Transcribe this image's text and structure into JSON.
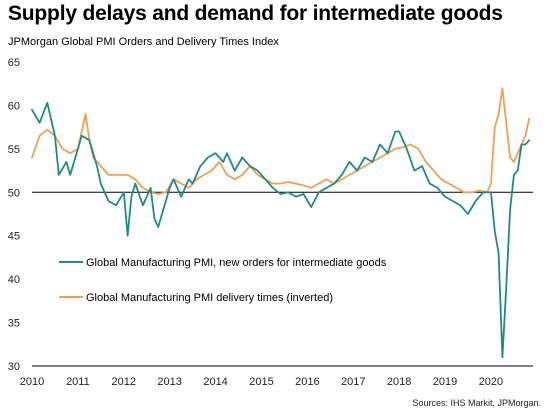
{
  "title": "Supply delays and demand for intermediate goods",
  "subtitle": "JPMorgan Global PMI Orders and Delivery Times Index",
  "source": "Sources: IHS Markit, JPMorgan.",
  "colors": {
    "new_orders": "#1e8c85",
    "delivery_times": "#f0a052",
    "axis": "#000000",
    "reference_line": "#000000"
  },
  "chart_data": {
    "type": "line",
    "x_ticks": [
      "2010",
      "2011",
      "2012",
      "2013",
      "2014",
      "2015",
      "2016",
      "2017",
      "2018",
      "2019",
      "2020"
    ],
    "y_ticks": [
      30,
      35,
      40,
      45,
      50,
      55,
      60,
      65
    ],
    "ylim": [
      30,
      65
    ],
    "xlim": [
      "2010-01",
      "2020-12"
    ],
    "reference_line": 50,
    "grid": false,
    "legend_position": "lower-left",
    "series": [
      {
        "name": "Global Manufacturing PMI, new orders for intermediate goods",
        "color": "#1e8c85",
        "points": [
          [
            "2010-01",
            59.5
          ],
          [
            "2010-03",
            58.0
          ],
          [
            "2010-05",
            60.3
          ],
          [
            "2010-07",
            56.5
          ],
          [
            "2010-08",
            52.0
          ],
          [
            "2010-10",
            53.5
          ],
          [
            "2010-11",
            52.0
          ],
          [
            "2011-01",
            55.0
          ],
          [
            "2011-02",
            56.5
          ],
          [
            "2011-04",
            56.0
          ],
          [
            "2011-06",
            53.0
          ],
          [
            "2011-07",
            51.0
          ],
          [
            "2011-09",
            49.0
          ],
          [
            "2011-11",
            48.5
          ],
          [
            "2012-01",
            50.0
          ],
          [
            "2012-02",
            45.0
          ],
          [
            "2012-03",
            49.5
          ],
          [
            "2012-04",
            51.0
          ],
          [
            "2012-06",
            48.5
          ],
          [
            "2012-08",
            50.5
          ],
          [
            "2012-09",
            47.0
          ],
          [
            "2012-10",
            46.0
          ],
          [
            "2012-11",
            47.5
          ],
          [
            "2013-01",
            50.5
          ],
          [
            "2013-02",
            51.5
          ],
          [
            "2013-04",
            49.5
          ],
          [
            "2013-06",
            51.5
          ],
          [
            "2013-07",
            51.0
          ],
          [
            "2013-09",
            53.0
          ],
          [
            "2013-11",
            54.0
          ],
          [
            "2014-01",
            54.5
          ],
          [
            "2014-03",
            53.5
          ],
          [
            "2014-04",
            54.5
          ],
          [
            "2014-06",
            52.5
          ],
          [
            "2014-08",
            54.0
          ],
          [
            "2014-10",
            53.0
          ],
          [
            "2014-12",
            52.5
          ],
          [
            "2015-02",
            51.5
          ],
          [
            "2015-04",
            50.5
          ],
          [
            "2015-06",
            49.8
          ],
          [
            "2015-08",
            50.0
          ],
          [
            "2015-10",
            49.5
          ],
          [
            "2015-12",
            49.8
          ],
          [
            "2016-02",
            48.3
          ],
          [
            "2016-04",
            50.0
          ],
          [
            "2016-06",
            50.5
          ],
          [
            "2016-08",
            51.0
          ],
          [
            "2016-10",
            52.0
          ],
          [
            "2016-12",
            53.5
          ],
          [
            "2017-02",
            52.5
          ],
          [
            "2017-04",
            54.0
          ],
          [
            "2017-06",
            53.5
          ],
          [
            "2017-08",
            55.5
          ],
          [
            "2017-10",
            54.5
          ],
          [
            "2017-12",
            57.0
          ],
          [
            "2018-01",
            57.0
          ],
          [
            "2018-03",
            55.0
          ],
          [
            "2018-05",
            52.5
          ],
          [
            "2018-07",
            53.0
          ],
          [
            "2018-09",
            51.0
          ],
          [
            "2018-11",
            50.5
          ],
          [
            "2019-01",
            49.5
          ],
          [
            "2019-03",
            49.0
          ],
          [
            "2019-05",
            48.5
          ],
          [
            "2019-07",
            47.5
          ],
          [
            "2019-09",
            49.0
          ],
          [
            "2019-11",
            50.0
          ],
          [
            "2020-01",
            50.0
          ],
          [
            "2020-02",
            45.5
          ],
          [
            "2020-03",
            43.0
          ],
          [
            "2020-04",
            31.0
          ],
          [
            "2020-05",
            39.0
          ],
          [
            "2020-06",
            48.0
          ],
          [
            "2020-07",
            52.0
          ],
          [
            "2020-08",
            52.5
          ],
          [
            "2020-09",
            55.5
          ],
          [
            "2020-10",
            55.5
          ],
          [
            "2020-11",
            56.0
          ]
        ]
      },
      {
        "name": "Global Manufacturing PMI delivery times (inverted)",
        "color": "#f0a052",
        "points": [
          [
            "2010-01",
            54.0
          ],
          [
            "2010-03",
            56.5
          ],
          [
            "2010-05",
            57.2
          ],
          [
            "2010-07",
            56.5
          ],
          [
            "2010-09",
            55.0
          ],
          [
            "2010-11",
            54.5
          ],
          [
            "2011-01",
            55.0
          ],
          [
            "2011-02",
            57.0
          ],
          [
            "2011-03",
            59.0
          ],
          [
            "2011-04",
            56.0
          ],
          [
            "2011-05",
            54.0
          ],
          [
            "2011-07",
            53.0
          ],
          [
            "2011-09",
            52.0
          ],
          [
            "2011-11",
            52.0
          ],
          [
            "2012-02",
            52.0
          ],
          [
            "2012-04",
            51.5
          ],
          [
            "2012-06",
            50.5
          ],
          [
            "2012-08",
            50.0
          ],
          [
            "2012-10",
            49.8
          ],
          [
            "2012-12",
            50.0
          ],
          [
            "2013-02",
            51.5
          ],
          [
            "2013-04",
            51.0
          ],
          [
            "2013-06",
            50.5
          ],
          [
            "2013-08",
            51.5
          ],
          [
            "2013-10",
            52.0
          ],
          [
            "2013-12",
            52.5
          ],
          [
            "2014-02",
            53.5
          ],
          [
            "2014-04",
            52.0
          ],
          [
            "2014-06",
            51.5
          ],
          [
            "2014-08",
            52.0
          ],
          [
            "2014-10",
            53.0
          ],
          [
            "2014-12",
            52.0
          ],
          [
            "2015-02",
            51.5
          ],
          [
            "2015-04",
            51.0
          ],
          [
            "2015-06",
            51.0
          ],
          [
            "2015-08",
            51.2
          ],
          [
            "2015-10",
            51.0
          ],
          [
            "2015-12",
            50.8
          ],
          [
            "2016-02",
            50.5
          ],
          [
            "2016-04",
            51.0
          ],
          [
            "2016-06",
            51.5
          ],
          [
            "2016-08",
            51.0
          ],
          [
            "2016-10",
            51.5
          ],
          [
            "2016-12",
            52.0
          ],
          [
            "2017-02",
            52.5
          ],
          [
            "2017-04",
            53.0
          ],
          [
            "2017-06",
            53.5
          ],
          [
            "2017-08",
            54.0
          ],
          [
            "2017-10",
            54.5
          ],
          [
            "2017-12",
            55.0
          ],
          [
            "2018-02",
            55.2
          ],
          [
            "2018-04",
            55.5
          ],
          [
            "2018-06",
            55.0
          ],
          [
            "2018-08",
            53.5
          ],
          [
            "2018-10",
            52.5
          ],
          [
            "2018-12",
            51.5
          ],
          [
            "2019-02",
            51.0
          ],
          [
            "2019-04",
            50.5
          ],
          [
            "2019-06",
            50.0
          ],
          [
            "2019-08",
            50.0
          ],
          [
            "2019-10",
            50.2
          ],
          [
            "2019-12",
            50.0
          ],
          [
            "2020-01",
            51.0
          ],
          [
            "2020-02",
            57.5
          ],
          [
            "2020-03",
            59.0
          ],
          [
            "2020-04",
            62.0
          ],
          [
            "2020-05",
            58.0
          ],
          [
            "2020-06",
            54.0
          ],
          [
            "2020-07",
            53.5
          ],
          [
            "2020-08",
            54.5
          ],
          [
            "2020-09",
            55.5
          ],
          [
            "2020-10",
            56.5
          ],
          [
            "2020-11",
            58.5
          ]
        ]
      }
    ]
  }
}
